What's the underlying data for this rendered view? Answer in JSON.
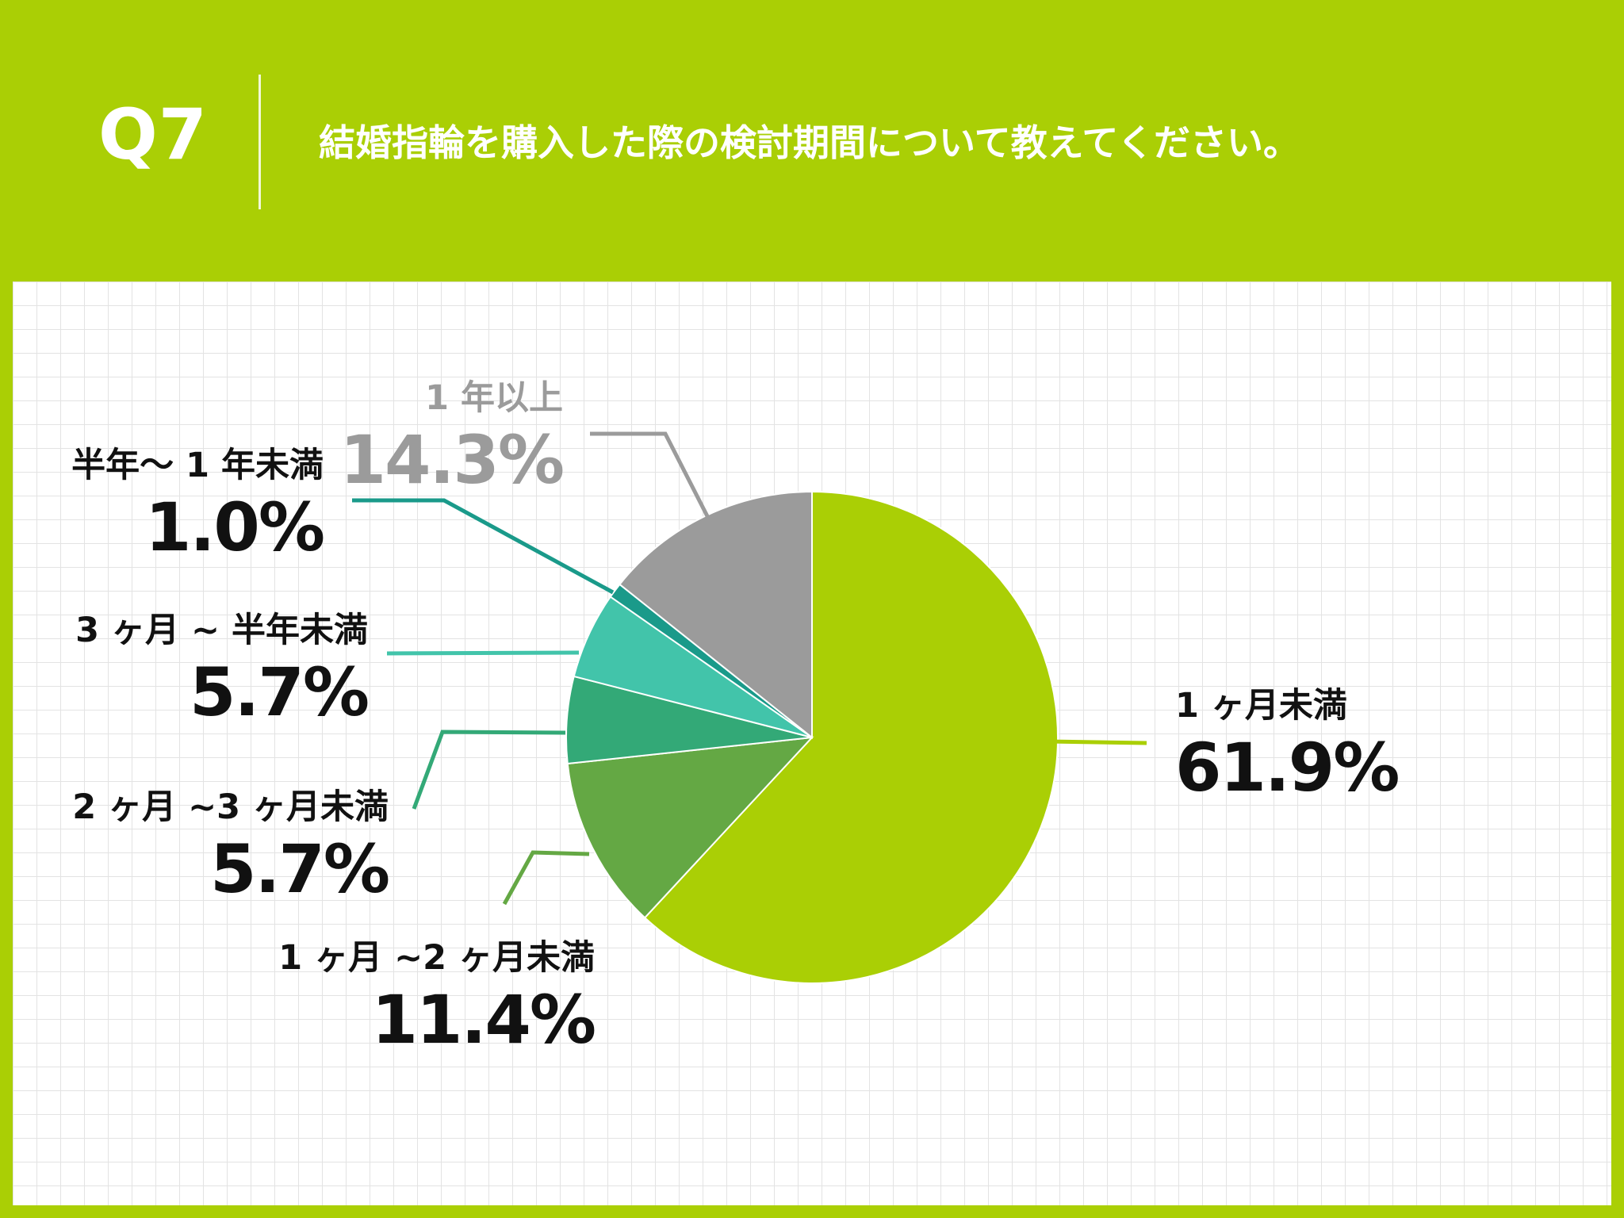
{
  "header": {
    "question_number": "Q7",
    "question_text": "結婚指輪を購入した際の検討期間について教えてください。"
  },
  "colors": {
    "background": "#aacf05",
    "panel": "#ffffff",
    "grid": "#e3e3e3"
  },
  "chart_data": {
    "type": "pie",
    "title": "結婚指輪を購入した際の検討期間について教えてください。",
    "start_angle_deg": 0,
    "direction": "clockwise",
    "categories": [
      "1ヶ月未満",
      "1ヶ月~2ヶ月未満",
      "2ヶ月~3ヶ月未満",
      "3ヶ月~半年未満",
      "半年〜1年未満",
      "1年以上"
    ],
    "values": [
      61.9,
      11.4,
      5.7,
      5.7,
      1.0,
      14.3
    ],
    "colors": [
      "#aacf05",
      "#64a844",
      "#33a977",
      "#42c4aa",
      "#1a9a8a",
      "#9b9b9b"
    ],
    "labels": [
      {
        "category": "1 ヶ月未満",
        "percent": "61.9%",
        "label_color": "#111111"
      },
      {
        "category": "1 ヶ月 ~2 ヶ月未満",
        "percent": "11.4%",
        "label_color": "#111111"
      },
      {
        "category": "2 ヶ月 ~3 ヶ月未満",
        "percent": "5.7%",
        "label_color": "#111111"
      },
      {
        "category": "3 ヶ月 ~ 半年未満",
        "percent": "5.7%",
        "label_color": "#111111"
      },
      {
        "category": "半年〜 1 年未満",
        "percent": "1.0%",
        "label_color": "#111111"
      },
      {
        "category": "1 年以上",
        "percent": "14.3%",
        "label_color": "#9b9b9b"
      }
    ],
    "unit": "%"
  }
}
